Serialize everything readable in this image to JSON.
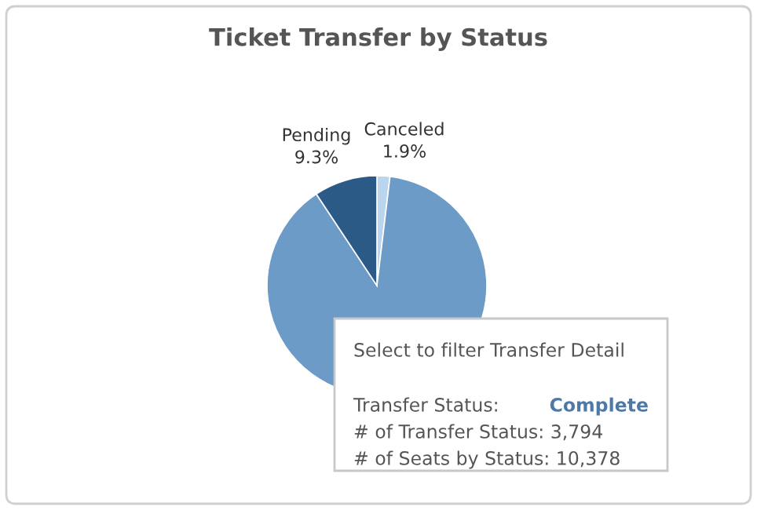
{
  "chart_data": {
    "type": "pie",
    "title": "Ticket Transfer by Status",
    "categories": [
      "Canceled",
      "Complete",
      "Pending"
    ],
    "values": [
      1.9,
      88.8,
      9.3
    ],
    "value_labels": [
      "1.9%",
      null,
      "9.3%"
    ],
    "colors": [
      "#b9d6ee",
      "#6b9bc6",
      "#2c5a86"
    ],
    "legend": false,
    "annotations": [
      "Select to filter Transfer Detail",
      "Transfer Status:",
      "# of Transfer Status: 3,794",
      "# of Seats by Status: 10,378"
    ]
  }
}
